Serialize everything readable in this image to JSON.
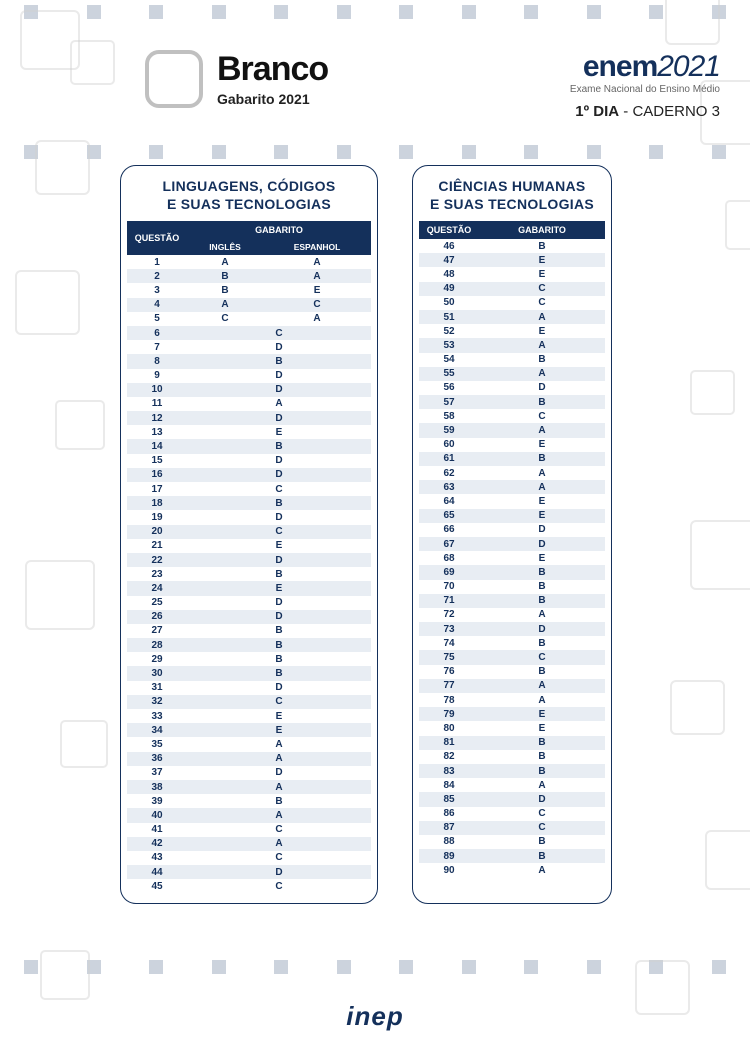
{
  "header": {
    "color_label": "Branco",
    "subtitle": "Gabarito 2021",
    "exam_prefix": "enem",
    "exam_year": "2021",
    "exam_tagline": "Exame Nacional do Ensino Médio",
    "day_prefix": "1º DIA",
    "day_sep": " - ",
    "caderno": "CADERNO 3"
  },
  "colors": {
    "navy": "#14305b",
    "stripe": "#e8edf3",
    "deco": "#d0d0d0",
    "bg": "#ffffff"
  },
  "table_left": {
    "title_line1": "LINGUAGENS, CÓDIGOS",
    "title_line2": "E SUAS TECNOLOGIAS",
    "col_questao": "QUESTÃO",
    "col_gabarito": "GABARITO",
    "col_ingles": "INGLÊS",
    "col_espanhol": "ESPANHOL",
    "rows": [
      {
        "q": 1,
        "ing": "A",
        "esp": "A"
      },
      {
        "q": 2,
        "ing": "B",
        "esp": "A"
      },
      {
        "q": 3,
        "ing": "B",
        "esp": "E"
      },
      {
        "q": 4,
        "ing": "A",
        "esp": "C"
      },
      {
        "q": 5,
        "ing": "C",
        "esp": "A"
      },
      {
        "q": 6,
        "ans": "C"
      },
      {
        "q": 7,
        "ans": "D"
      },
      {
        "q": 8,
        "ans": "B"
      },
      {
        "q": 9,
        "ans": "D"
      },
      {
        "q": 10,
        "ans": "D"
      },
      {
        "q": 11,
        "ans": "A"
      },
      {
        "q": 12,
        "ans": "D"
      },
      {
        "q": 13,
        "ans": "E"
      },
      {
        "q": 14,
        "ans": "B"
      },
      {
        "q": 15,
        "ans": "D"
      },
      {
        "q": 16,
        "ans": "D"
      },
      {
        "q": 17,
        "ans": "C"
      },
      {
        "q": 18,
        "ans": "B"
      },
      {
        "q": 19,
        "ans": "D"
      },
      {
        "q": 20,
        "ans": "C"
      },
      {
        "q": 21,
        "ans": "E"
      },
      {
        "q": 22,
        "ans": "D"
      },
      {
        "q": 23,
        "ans": "B"
      },
      {
        "q": 24,
        "ans": "E"
      },
      {
        "q": 25,
        "ans": "D"
      },
      {
        "q": 26,
        "ans": "D"
      },
      {
        "q": 27,
        "ans": "B"
      },
      {
        "q": 28,
        "ans": "B"
      },
      {
        "q": 29,
        "ans": "B"
      },
      {
        "q": 30,
        "ans": "B"
      },
      {
        "q": 31,
        "ans": "D"
      },
      {
        "q": 32,
        "ans": "C"
      },
      {
        "q": 33,
        "ans": "E"
      },
      {
        "q": 34,
        "ans": "E"
      },
      {
        "q": 35,
        "ans": "A"
      },
      {
        "q": 36,
        "ans": "A"
      },
      {
        "q": 37,
        "ans": "D"
      },
      {
        "q": 38,
        "ans": "A"
      },
      {
        "q": 39,
        "ans": "B"
      },
      {
        "q": 40,
        "ans": "A"
      },
      {
        "q": 41,
        "ans": "C"
      },
      {
        "q": 42,
        "ans": "A"
      },
      {
        "q": 43,
        "ans": "C"
      },
      {
        "q": 44,
        "ans": "D"
      },
      {
        "q": 45,
        "ans": "C"
      }
    ]
  },
  "table_right": {
    "title_line1": "CIÊNCIAS HUMANAS",
    "title_line2": "E SUAS TECNOLOGIAS",
    "col_questao": "QUESTÃO",
    "col_gabarito": "GABARITO",
    "rows": [
      {
        "q": 46,
        "ans": "B"
      },
      {
        "q": 47,
        "ans": "E"
      },
      {
        "q": 48,
        "ans": "E"
      },
      {
        "q": 49,
        "ans": "C"
      },
      {
        "q": 50,
        "ans": "C"
      },
      {
        "q": 51,
        "ans": "A"
      },
      {
        "q": 52,
        "ans": "E"
      },
      {
        "q": 53,
        "ans": "A"
      },
      {
        "q": 54,
        "ans": "B"
      },
      {
        "q": 55,
        "ans": "A"
      },
      {
        "q": 56,
        "ans": "D"
      },
      {
        "q": 57,
        "ans": "B"
      },
      {
        "q": 58,
        "ans": "C"
      },
      {
        "q": 59,
        "ans": "A"
      },
      {
        "q": 60,
        "ans": "E"
      },
      {
        "q": 61,
        "ans": "B"
      },
      {
        "q": 62,
        "ans": "A"
      },
      {
        "q": 63,
        "ans": "A"
      },
      {
        "q": 64,
        "ans": "E"
      },
      {
        "q": 65,
        "ans": "E"
      },
      {
        "q": 66,
        "ans": "D"
      },
      {
        "q": 67,
        "ans": "D"
      },
      {
        "q": 68,
        "ans": "E"
      },
      {
        "q": 69,
        "ans": "B"
      },
      {
        "q": 70,
        "ans": "B"
      },
      {
        "q": 71,
        "ans": "B"
      },
      {
        "q": 72,
        "ans": "A"
      },
      {
        "q": 73,
        "ans": "D"
      },
      {
        "q": 74,
        "ans": "B"
      },
      {
        "q": 75,
        "ans": "C"
      },
      {
        "q": 76,
        "ans": "B"
      },
      {
        "q": 77,
        "ans": "A"
      },
      {
        "q": 78,
        "ans": "A"
      },
      {
        "q": 79,
        "ans": "E"
      },
      {
        "q": 80,
        "ans": "E"
      },
      {
        "q": 81,
        "ans": "B"
      },
      {
        "q": 82,
        "ans": "B"
      },
      {
        "q": 83,
        "ans": "B"
      },
      {
        "q": 84,
        "ans": "A"
      },
      {
        "q": 85,
        "ans": "D"
      },
      {
        "q": 86,
        "ans": "C"
      },
      {
        "q": 87,
        "ans": "C"
      },
      {
        "q": 88,
        "ans": "B"
      },
      {
        "q": 89,
        "ans": "B"
      },
      {
        "q": 90,
        "ans": "A"
      }
    ]
  },
  "footer": {
    "logo_text": "inep"
  }
}
